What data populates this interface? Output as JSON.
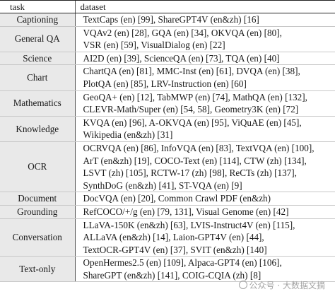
{
  "header": {
    "task": "task",
    "dataset": "dataset"
  },
  "rows": [
    {
      "task": "Captioning",
      "lines": [
        "TextCaps (en) [99], ShareGPT4V (en&zh) [16]"
      ]
    },
    {
      "task": "General QA",
      "lines": [
        "VQAv2 (en) [28], GQA (en) [34], OKVQA (en) [80],",
        "VSR (en) [59], VisualDialog (en) [22]"
      ]
    },
    {
      "task": "Science",
      "lines": [
        "AI2D (en) [39], ScienceQA (en) [73], TQA (en) [40]"
      ]
    },
    {
      "task": "Chart",
      "lines": [
        "ChartQA (en) [81], MMC-Inst (en) [61], DVQA (en) [38],",
        "PlotQA (en) [85], LRV-Instruction (en) [60]"
      ]
    },
    {
      "task": "Mathematics",
      "lines": [
        "GeoQA+ (en) [12], TabMWP (en) [74], MathQA (en) [132],",
        "CLEVR-Math/Super (en) [54, 58], Geometry3K (en) [72]"
      ]
    },
    {
      "task": "Knowledge",
      "lines": [
        "KVQA (en) [96], A-OKVQA (en) [95], ViQuAE (en) [45],",
        "Wikipedia (en&zh) [31]"
      ]
    },
    {
      "task": "OCR",
      "lines": [
        "OCRVQA (en) [86], InfoVQA (en) [83], TextVQA (en) [100],",
        "ArT (en&zh) [19], COCO-Text (en) [114], CTW (zh) [134],",
        "LSVT (zh) [105], RCTW-17 (zh) [98], ReCTs (zh) [137],",
        "SynthDoG (en&zh) [41], ST-VQA (en) [9]"
      ]
    },
    {
      "task": "Document",
      "lines": [
        "DocVQA (en) [20], Common Crawl PDF (en&zh)"
      ]
    },
    {
      "task": "Grounding",
      "lines": [
        "RefCOCO/+/g (en) [79, 131], Visual Genome (en) [42]"
      ]
    },
    {
      "task": "Conversation",
      "lines": [
        "LLaVA-150K (en&zh) [63], LVIS-Instruct4V (en) [115],",
        "ALLaVA (en&zh) [14], Laion-GPT4V (en) [44],",
        "TextOCR-GPT4V (en) [37], SVIT (en&zh) [140]"
      ]
    },
    {
      "task": "Text-only",
      "lines": [
        "OpenHermes2.5 (en) [109], Alpaca-GPT4 (en) [106],",
        "ShareGPT (en&zh) [141], COIG-CQIA (zh) [8]"
      ]
    }
  ],
  "watermark": {
    "icon": "wechat-icon",
    "text": "公众号 · 大数据文摘"
  }
}
